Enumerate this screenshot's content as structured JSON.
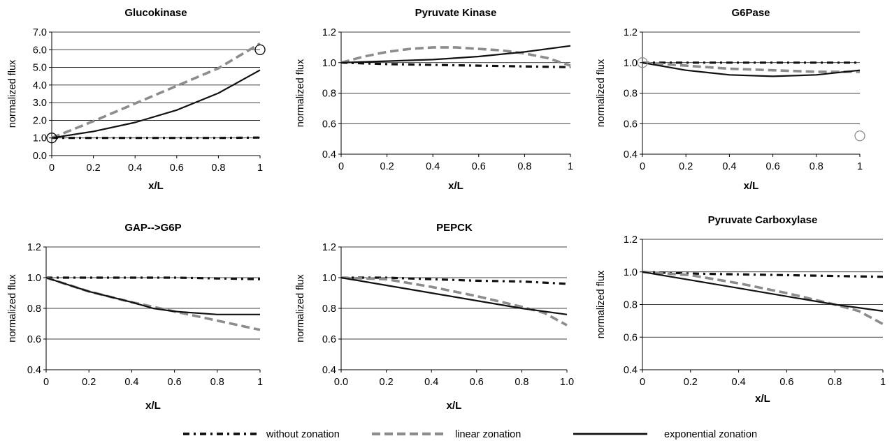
{
  "series_styles": {
    "without": {
      "color": "#111111"
    },
    "linear": {
      "color": "#8c8c8c"
    },
    "exponential": {
      "color": "#111111"
    }
  },
  "legend": [
    {
      "key": "without",
      "label": "without zonation"
    },
    {
      "key": "linear",
      "label": "linear zonation"
    },
    {
      "key": "exponential",
      "label": "exponential zonation"
    }
  ],
  "chart_data": [
    {
      "type": "line",
      "title": "Glucokinase",
      "xlabel": "x/L",
      "ylabel": "normalized flux",
      "xlim": [
        0,
        1
      ],
      "ylim": [
        0,
        7
      ],
      "xticks": [
        0,
        0.2,
        0.4,
        0.6,
        0.8,
        1
      ],
      "xtick_labels": [
        "0",
        "0.2",
        "0.4",
        "0.6",
        "0.8",
        "1"
      ],
      "yticks": [
        0,
        1,
        2,
        3,
        4,
        5,
        6,
        7
      ],
      "ytick_labels": [
        "0.0",
        "1.0",
        "2.0",
        "3.0",
        "4.0",
        "5.0",
        "6.0",
        "7.0"
      ],
      "grid": true,
      "series": [
        {
          "key": "without",
          "x": [
            0,
            0.2,
            0.4,
            0.6,
            0.8,
            1
          ],
          "y": [
            1.0,
            1.0,
            1.0,
            1.0,
            1.0,
            1.02
          ]
        },
        {
          "key": "linear",
          "x": [
            0,
            0.2,
            0.4,
            0.6,
            0.8,
            1
          ],
          "y": [
            1.0,
            1.95,
            2.95,
            3.95,
            4.95,
            6.35
          ]
        },
        {
          "key": "exponential",
          "x": [
            0,
            0.2,
            0.4,
            0.6,
            0.8,
            1
          ],
          "y": [
            1.0,
            1.37,
            1.88,
            2.58,
            3.54,
            4.85
          ]
        }
      ],
      "markers": [
        {
          "x": 0,
          "y": 1.0,
          "color": "#000000"
        },
        {
          "x": 1,
          "y": 6.0,
          "color": "#000000"
        }
      ]
    },
    {
      "type": "line",
      "title": "Pyruvate Kinase",
      "xlabel": "x/L",
      "ylabel": "normalized flux",
      "xlim": [
        0,
        1
      ],
      "ylim": [
        0.4,
        1.2
      ],
      "xticks": [
        0,
        0.2,
        0.4,
        0.6,
        0.8,
        1
      ],
      "xtick_labels": [
        "0",
        "0.2",
        "0.4",
        "0.6",
        "0.8",
        "1"
      ],
      "yticks": [
        0.4,
        0.6,
        0.8,
        1.0,
        1.2
      ],
      "ytick_labels": [
        "0.4",
        "0.6",
        "0.8",
        "1.0",
        "1.2"
      ],
      "grid": true,
      "series": [
        {
          "key": "without",
          "x": [
            0,
            0.2,
            0.4,
            0.6,
            0.8,
            1
          ],
          "y": [
            1.0,
            0.99,
            0.985,
            0.98,
            0.975,
            0.97
          ]
        },
        {
          "key": "linear",
          "x": [
            0,
            0.1,
            0.2,
            0.3,
            0.4,
            0.5,
            0.6,
            0.7,
            0.8,
            0.9,
            1
          ],
          "y": [
            1.0,
            1.04,
            1.07,
            1.09,
            1.1,
            1.1,
            1.09,
            1.08,
            1.06,
            1.03,
            0.98
          ]
        },
        {
          "key": "exponential",
          "x": [
            0,
            0.2,
            0.4,
            0.6,
            0.8,
            1
          ],
          "y": [
            1.0,
            1.01,
            1.02,
            1.04,
            1.07,
            1.11
          ]
        }
      ],
      "markers": []
    },
    {
      "type": "line",
      "title": "G6Pase",
      "xlabel": "x/L",
      "ylabel": "normalized flux",
      "xlim": [
        0,
        1
      ],
      "ylim": [
        0.4,
        1.2
      ],
      "xticks": [
        0,
        0.2,
        0.4,
        0.6,
        0.8,
        1
      ],
      "xtick_labels": [
        "0",
        "0.2",
        "0.4",
        "0.6",
        "0.8",
        "1"
      ],
      "yticks": [
        0.4,
        0.6,
        0.8,
        1.0,
        1.2
      ],
      "ytick_labels": [
        "0.4",
        "0.6",
        "0.8",
        "1.0",
        "1.2"
      ],
      "grid": true,
      "series": [
        {
          "key": "without",
          "x": [
            0,
            0.2,
            0.4,
            0.6,
            0.8,
            1
          ],
          "y": [
            1.0,
            1.0,
            1.0,
            1.0,
            1.0,
            1.0
          ]
        },
        {
          "key": "linear",
          "x": [
            0,
            0.2,
            0.4,
            0.6,
            0.8,
            1
          ],
          "y": [
            1.0,
            0.98,
            0.96,
            0.95,
            0.94,
            0.94
          ]
        },
        {
          "key": "exponential",
          "x": [
            0,
            0.2,
            0.4,
            0.6,
            0.8,
            1
          ],
          "y": [
            1.0,
            0.95,
            0.92,
            0.91,
            0.92,
            0.95
          ]
        }
      ],
      "markers": [
        {
          "x": 0,
          "y": 1.0,
          "color": "#8c8c8c"
        },
        {
          "x": 1,
          "y": 0.52,
          "color": "#8c8c8c"
        }
      ]
    },
    {
      "type": "line",
      "title": "GAP-->G6P",
      "xlabel": "x/L",
      "ylabel": "normalized flux",
      "xlim": [
        0,
        1
      ],
      "ylim": [
        0.4,
        1.2
      ],
      "xticks": [
        0,
        0.2,
        0.4,
        0.6,
        0.8,
        1
      ],
      "xtick_labels": [
        "0",
        "0.2",
        "0.4",
        "0.6",
        "0.8",
        "1"
      ],
      "yticks": [
        0.4,
        0.6,
        0.8,
        1.0,
        1.2
      ],
      "ytick_labels": [
        "0.4",
        "0.6",
        "0.8",
        "1.0",
        "1.2"
      ],
      "grid": true,
      "series": [
        {
          "key": "without",
          "x": [
            0,
            0.2,
            0.4,
            0.6,
            0.8,
            1
          ],
          "y": [
            1.0,
            1.0,
            1.0,
            1.0,
            0.995,
            0.99
          ]
        },
        {
          "key": "linear",
          "x": [
            0,
            0.2,
            0.4,
            0.6,
            0.8,
            1
          ],
          "y": [
            1.0,
            0.91,
            0.84,
            0.78,
            0.72,
            0.66
          ]
        },
        {
          "key": "exponential",
          "x": [
            0,
            0.2,
            0.4,
            0.5,
            0.6,
            0.8,
            1
          ],
          "y": [
            1.0,
            0.91,
            0.84,
            0.8,
            0.78,
            0.76,
            0.76
          ]
        }
      ],
      "markers": []
    },
    {
      "type": "line",
      "title": "PEPCK",
      "xlabel": "x/L",
      "ylabel": "normalized flux",
      "xlim": [
        0,
        1
      ],
      "ylim": [
        0.4,
        1.2
      ],
      "xticks": [
        0,
        0.2,
        0.4,
        0.6,
        0.8,
        1
      ],
      "xtick_labels": [
        "0.0",
        "0.2",
        "0.4",
        "0.6",
        "0.8",
        "1.0"
      ],
      "yticks": [
        0.4,
        0.6,
        0.8,
        1.0,
        1.2
      ],
      "ytick_labels": [
        "0.4",
        "0.6",
        "0.8",
        "1.0",
        "1.2"
      ],
      "grid": true,
      "series": [
        {
          "key": "without",
          "x": [
            0,
            0.2,
            0.4,
            0.6,
            0.8,
            1
          ],
          "y": [
            1.0,
            1.0,
            0.99,
            0.98,
            0.975,
            0.96
          ]
        },
        {
          "key": "linear",
          "x": [
            0,
            0.2,
            0.4,
            0.6,
            0.8,
            0.9,
            1
          ],
          "y": [
            1.0,
            0.99,
            0.94,
            0.88,
            0.81,
            0.77,
            0.69
          ]
        },
        {
          "key": "exponential",
          "x": [
            0,
            0.2,
            0.4,
            0.6,
            0.8,
            1
          ],
          "y": [
            1.0,
            0.95,
            0.9,
            0.85,
            0.8,
            0.76
          ]
        }
      ],
      "markers": []
    },
    {
      "type": "line",
      "title": "Pyruvate Carboxylase",
      "xlabel": "x/L",
      "ylabel": "normalized flux",
      "xlim": [
        0,
        1
      ],
      "ylim": [
        0.4,
        1.2
      ],
      "xticks": [
        0,
        0.2,
        0.4,
        0.6,
        0.8,
        1
      ],
      "xtick_labels": [
        "0",
        "0.2",
        "0.4",
        "0.6",
        "0.8",
        "1"
      ],
      "yticks": [
        0.4,
        0.6,
        0.8,
        1.0,
        1.2
      ],
      "ytick_labels": [
        "0.4",
        "0.6",
        "0.8",
        "1.0",
        "1.2"
      ],
      "grid": true,
      "series": [
        {
          "key": "without",
          "x": [
            0,
            0.2,
            0.4,
            0.6,
            0.8,
            1
          ],
          "y": [
            1.0,
            0.99,
            0.985,
            0.98,
            0.975,
            0.97
          ]
        },
        {
          "key": "linear",
          "x": [
            0,
            0.2,
            0.4,
            0.6,
            0.8,
            0.9,
            1
          ],
          "y": [
            1.0,
            0.98,
            0.93,
            0.87,
            0.8,
            0.76,
            0.68
          ]
        },
        {
          "key": "exponential",
          "x": [
            0,
            0.2,
            0.4,
            0.6,
            0.8,
            1
          ],
          "y": [
            1.0,
            0.95,
            0.9,
            0.85,
            0.8,
            0.76
          ]
        }
      ],
      "markers": []
    }
  ]
}
